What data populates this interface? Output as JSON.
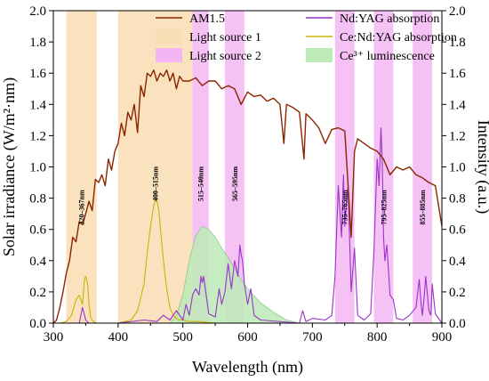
{
  "chart_data": {
    "type": "line",
    "xlabel": "Wavelength (nm)",
    "ylabel": "Solar irradiance (W/m²·nm)",
    "y2label": "Intensity (a.u.)",
    "xlim": [
      300,
      900
    ],
    "ylim": [
      0,
      2.0
    ],
    "y2lim": [
      0,
      2.0
    ],
    "x_ticks": [
      "300",
      "400",
      "500",
      "600",
      "700",
      "800",
      "900"
    ],
    "y_ticks": [
      "0.0",
      "0.2",
      "0.4",
      "0.6",
      "0.8",
      "1.0",
      "1.2",
      "1.4",
      "1.6",
      "1.8",
      "2.0"
    ],
    "y2_ticks": [
      "0.0",
      "0.2",
      "0.4",
      "0.6",
      "0.8",
      "1.0",
      "1.2",
      "1.4",
      "1.6",
      "1.8",
      "2.0"
    ],
    "grid": false,
    "legend_position": "top",
    "legend": [
      {
        "label": "AM1.5",
        "kind": "line",
        "color": "#8B2500"
      },
      {
        "label": "Nd:YAG absorption",
        "kind": "line",
        "color": "#9933CC"
      },
      {
        "label": "Light source 1",
        "kind": "patch",
        "color": "#F9DDB4"
      },
      {
        "label": "Ce:Nd:YAG absorption",
        "kind": "line",
        "color": "#C8B400"
      },
      {
        "label": "Light source 2",
        "kind": "patch",
        "color": "#F4B6F2"
      },
      {
        "label": "Ce³⁺  luminescence",
        "kind": "patch",
        "color": "#BDEBB8"
      }
    ],
    "bands": [
      {
        "label": "320–367nm",
        "range": [
          320,
          367
        ],
        "color": "#F9DDB4",
        "label_y": 0.63
      },
      {
        "label": "400–515nm",
        "range": [
          400,
          515
        ],
        "color": "#F9DDB4",
        "label_y": 0.78
      },
      {
        "label": "515–540nm",
        "range": [
          515,
          540
        ],
        "color": "#F4B6F2",
        "label_y": 0.78
      },
      {
        "label": "565–595nm",
        "range": [
          565,
          595
        ],
        "color": "#F4B6F2",
        "label_y": 0.78
      },
      {
        "label": "735–765nm",
        "range": [
          735,
          765
        ],
        "color": "#F4B6F2",
        "label_y": 0.63
      },
      {
        "label": "795–825nm",
        "range": [
          795,
          825
        ],
        "color": "#F4B6F2",
        "label_y": 0.63
      },
      {
        "label": "855–885nm",
        "range": [
          855,
          885
        ],
        "color": "#F4B6F2",
        "label_y": 0.63
      }
    ],
    "series": [
      {
        "name": "AM1.5",
        "color": "#8B2500",
        "x": [
          300,
          305,
          310,
          315,
          320,
          325,
          330,
          335,
          340,
          345,
          350,
          355,
          360,
          365,
          370,
          375,
          380,
          385,
          390,
          395,
          400,
          405,
          410,
          415,
          420,
          425,
          430,
          435,
          440,
          445,
          450,
          455,
          460,
          465,
          470,
          475,
          480,
          485,
          490,
          495,
          500,
          510,
          520,
          530,
          540,
          550,
          560,
          570,
          580,
          590,
          600,
          610,
          620,
          630,
          640,
          650,
          656,
          660,
          670,
          680,
          687,
          690,
          700,
          710,
          720,
          730,
          740,
          750,
          760,
          765,
          770,
          780,
          790,
          800,
          810,
          820,
          830,
          840,
          850,
          860,
          870,
          880,
          890,
          900
        ],
        "y": [
          0.0,
          0.02,
          0.1,
          0.2,
          0.32,
          0.4,
          0.55,
          0.52,
          0.65,
          0.63,
          0.7,
          0.78,
          0.72,
          0.92,
          0.9,
          0.95,
          0.88,
          1.05,
          0.98,
          1.1,
          1.15,
          1.28,
          1.2,
          1.35,
          1.3,
          1.4,
          1.22,
          1.52,
          1.45,
          1.6,
          1.58,
          1.62,
          1.55,
          1.6,
          1.58,
          1.62,
          1.55,
          1.6,
          1.5,
          1.58,
          1.55,
          1.55,
          1.57,
          1.52,
          1.55,
          1.55,
          1.5,
          1.52,
          1.5,
          1.4,
          1.48,
          1.45,
          1.46,
          1.42,
          1.44,
          1.4,
          1.15,
          1.4,
          1.38,
          1.35,
          1.05,
          1.34,
          1.3,
          1.25,
          1.15,
          1.24,
          1.25,
          1.23,
          0.55,
          1.1,
          1.18,
          1.15,
          1.12,
          1.1,
          1.05,
          0.95,
          1.0,
          0.98,
          1.0,
          0.95,
          0.93,
          0.9,
          0.88,
          0.62
        ]
      },
      {
        "name": "Nd:YAG absorption",
        "color": "#9933CC",
        "x": [
          300,
          340,
          345,
          350,
          355,
          400,
          440,
          460,
          470,
          480,
          490,
          500,
          505,
          510,
          515,
          520,
          525,
          528,
          530,
          532,
          540,
          550,
          556,
          560,
          565,
          570,
          575,
          580,
          585,
          588,
          590,
          592,
          595,
          600,
          605,
          610,
          620,
          680,
          685,
          690,
          700,
          720,
          730,
          735,
          740,
          745,
          748,
          750,
          755,
          760,
          765,
          770,
          780,
          790,
          795,
          800,
          803,
          806,
          808,
          810,
          812,
          815,
          820,
          825,
          830,
          840,
          850,
          860,
          865,
          868,
          870,
          873,
          875,
          880,
          883,
          885,
          890,
          900
        ],
        "y": [
          0,
          0,
          0.1,
          0.02,
          0,
          0,
          0.02,
          0.01,
          0.05,
          0.02,
          0.08,
          0.02,
          0.12,
          0.05,
          0.18,
          0.22,
          0.18,
          0.3,
          0.26,
          0.3,
          0.06,
          0.04,
          0.22,
          0.12,
          0.2,
          0.38,
          0.22,
          0.4,
          0.3,
          0.5,
          0.44,
          0.4,
          0.25,
          0.12,
          0.22,
          0.05,
          0.02,
          0,
          0.08,
          0.01,
          0.03,
          0.02,
          0.05,
          0.3,
          0.88,
          0.55,
          0.95,
          0.62,
          0.88,
          0.2,
          0.48,
          0.05,
          0.02,
          0.06,
          0.45,
          1.05,
          0.88,
          1.25,
          1.02,
          0.55,
          0.4,
          0.5,
          0.18,
          0.15,
          0.03,
          0.02,
          0.05,
          0.1,
          0.28,
          0.12,
          0.05,
          0.18,
          0.3,
          0.08,
          0.05,
          0.25,
          0.06,
          0
        ]
      },
      {
        "name": "Ce:Nd:YAG absorption",
        "color": "#C8B400",
        "x": [
          300,
          310,
          320,
          328,
          335,
          340,
          345,
          348,
          350,
          353,
          355,
          358,
          362,
          366,
          372,
          385,
          400,
          420,
          430,
          440,
          445,
          450,
          455,
          458,
          460,
          463,
          465,
          470,
          475,
          480,
          485,
          490,
          495,
          500,
          510,
          525,
          550,
          600,
          700
        ],
        "y": [
          0,
          0,
          0.01,
          0.05,
          0.15,
          0.18,
          0.12,
          0.28,
          0.3,
          0.25,
          0.12,
          0.03,
          0.01,
          0,
          0,
          0,
          0,
          0.02,
          0.08,
          0.25,
          0.45,
          0.62,
          0.75,
          0.8,
          0.78,
          0.72,
          0.62,
          0.4,
          0.22,
          0.1,
          0.05,
          0.03,
          0.02,
          0.02,
          0.01,
          0.01,
          0,
          0,
          0
        ]
      },
      {
        "name": "Ce³⁺  luminescence",
        "color": "#7FBF7F",
        "fill": "#BDEBB8",
        "x": [
          480,
          490,
          500,
          510,
          520,
          530,
          540,
          550,
          560,
          570,
          580,
          590,
          600,
          620,
          640,
          660,
          680
        ],
        "y": [
          0,
          0.05,
          0.18,
          0.4,
          0.56,
          0.62,
          0.6,
          0.55,
          0.48,
          0.42,
          0.35,
          0.28,
          0.22,
          0.13,
          0.07,
          0.02,
          0
        ]
      }
    ]
  }
}
